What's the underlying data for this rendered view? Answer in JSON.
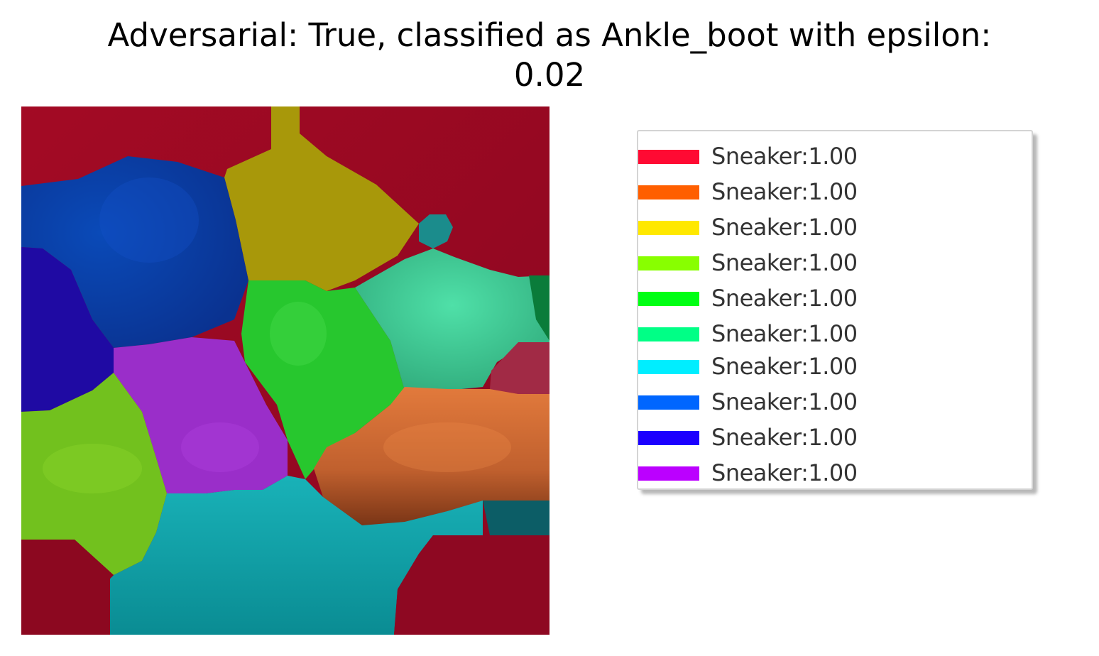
{
  "title": {
    "line1": "Adversarial: True, classified as Ankle_boot with epsilon:",
    "line2": "0.02"
  },
  "legend": {
    "items": [
      {
        "label": "Sneaker:1.00",
        "color": "#ff0a33"
      },
      {
        "label": "Sneaker:1.00",
        "color": "#ff5f00"
      },
      {
        "label": "Sneaker:1.00",
        "color": "#ffe800"
      },
      {
        "label": "Sneaker:1.00",
        "color": "#88ff00"
      },
      {
        "label": "Sneaker:1.00",
        "color": "#00ff14"
      },
      {
        "label": "Sneaker:1.00",
        "color": "#00ff86"
      },
      {
        "label": "Sneaker:1.00",
        "color": "#00eeff"
      },
      {
        "label": "Sneaker:1.00",
        "color": "#0066ff"
      },
      {
        "label": "Sneaker:1.00",
        "color": "#1c00ff"
      },
      {
        "label": "Sneaker:1.00",
        "color": "#bb00ff"
      }
    ]
  }
}
